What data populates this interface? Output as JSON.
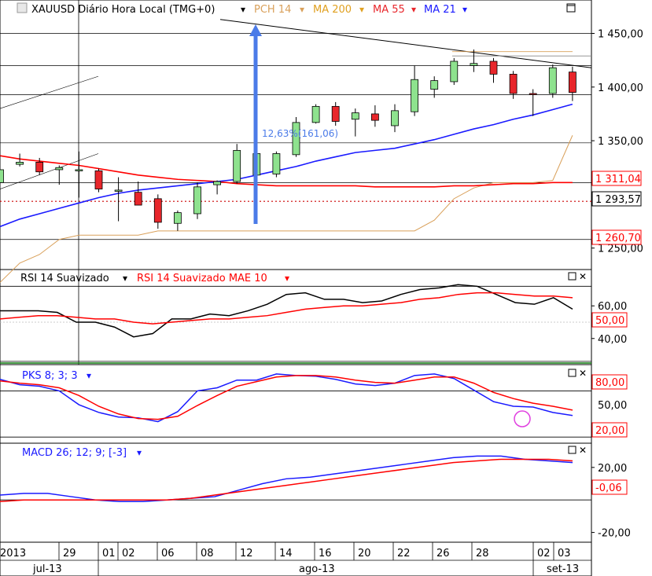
{
  "colors": {
    "bull": "#8ee28e",
    "bear": "#e8262b",
    "blue": "#1a1aff",
    "red": "#ff0000",
    "pch": "#d9a05a",
    "arrow": "#4b7be8",
    "price_box_border": "#ff0000",
    "price_box_fill": "#ffffff"
  },
  "header": {
    "symbol_label": "XAUUSD Diário Hora Local (TMG+0)",
    "legend": [
      {
        "label": "PCH 14",
        "color": "#d9a05a"
      },
      {
        "label": "MA 200",
        "color": "#e0a020"
      },
      {
        "label": "MA 55",
        "color": "#e8262b"
      },
      {
        "label": "MA 21",
        "color": "#1a1aff"
      }
    ]
  },
  "annotation": {
    "label": "12,63%(161,06)"
  },
  "price_boxes": [
    "1 311,04",
    "1 293,57",
    "1 260,70"
  ],
  "chart_data": [
    {
      "type": "candlestick",
      "title": "XAUUSD Diário Hora Local (TMG+0)",
      "ylim": [
        1230,
        1465
      ],
      "y_ticks": [
        "1 450,00",
        "1 400,00",
        "1 350,00",
        "1 250,00"
      ],
      "x_ticks": [
        "2013",
        "29",
        "01",
        "02",
        "06",
        "08",
        "12",
        "14",
        "16",
        "20",
        "22",
        "26",
        "28",
        "02",
        "03"
      ],
      "x_months": [
        "jul-13",
        "ago-13",
        "set-13"
      ],
      "candles": [
        {
          "o": 1311,
          "h": 1336,
          "l": 1309,
          "c": 1323
        },
        {
          "o": 1328,
          "h": 1338,
          "l": 1326,
          "c": 1330
        },
        {
          "o": 1330,
          "h": 1334,
          "l": 1318,
          "c": 1321
        },
        {
          "o": 1323,
          "h": 1327,
          "l": 1309,
          "c": 1325
        },
        {
          "o": 1322,
          "h": 1340,
          "l": 1297,
          "c": 1323
        },
        {
          "o": 1322,
          "h": 1324,
          "l": 1302,
          "c": 1305
        },
        {
          "o": 1304,
          "h": 1316,
          "l": 1275,
          "c": 1304
        },
        {
          "o": 1302,
          "h": 1312,
          "l": 1290,
          "c": 1290
        },
        {
          "o": 1296,
          "h": 1300,
          "l": 1268,
          "c": 1274
        },
        {
          "o": 1273,
          "h": 1285,
          "l": 1266,
          "c": 1283
        },
        {
          "o": 1282,
          "h": 1311,
          "l": 1277,
          "c": 1307
        },
        {
          "o": 1309,
          "h": 1313,
          "l": 1300,
          "c": 1312
        },
        {
          "o": 1312,
          "h": 1347,
          "l": 1310,
          "c": 1341
        },
        {
          "o": 1318,
          "h": 1346,
          "l": 1308,
          "c": 1338
        },
        {
          "o": 1319,
          "h": 1340,
          "l": 1316,
          "c": 1338
        },
        {
          "o": 1337,
          "h": 1372,
          "l": 1335,
          "c": 1367
        },
        {
          "o": 1367,
          "h": 1384,
          "l": 1366,
          "c": 1382
        },
        {
          "o": 1382,
          "h": 1386,
          "l": 1364,
          "c": 1368
        },
        {
          "o": 1370,
          "h": 1380,
          "l": 1354,
          "c": 1376
        },
        {
          "o": 1375,
          "h": 1383,
          "l": 1363,
          "c": 1369
        },
        {
          "o": 1364,
          "h": 1384,
          "l": 1358,
          "c": 1378
        },
        {
          "o": 1377,
          "h": 1420,
          "l": 1373,
          "c": 1407
        },
        {
          "o": 1398,
          "h": 1410,
          "l": 1390,
          "c": 1406
        },
        {
          "o": 1405,
          "h": 1427,
          "l": 1402,
          "c": 1424
        },
        {
          "o": 1420,
          "h": 1435,
          "l": 1414,
          "c": 1422
        },
        {
          "o": 1424,
          "h": 1427,
          "l": 1404,
          "c": 1412
        },
        {
          "o": 1412,
          "h": 1415,
          "l": 1389,
          "c": 1394
        },
        {
          "o": 1394,
          "h": 1398,
          "l": 1373,
          "c": 1393
        },
        {
          "o": 1394,
          "h": 1421,
          "l": 1390,
          "c": 1418
        },
        {
          "o": 1414,
          "h": 1419,
          "l": 1387,
          "c": 1395
        }
      ],
      "ma21": [
        1270,
        1277,
        1282,
        1287,
        1292,
        1297,
        1301,
        1304,
        1306,
        1308,
        1310,
        1312,
        1314,
        1318,
        1322,
        1326,
        1331,
        1335,
        1339,
        1341,
        1343,
        1347,
        1351,
        1356,
        1361,
        1365,
        1370,
        1374,
        1379,
        1384
      ],
      "ma55": [
        1336,
        1333,
        1331,
        1329,
        1327,
        1324,
        1321,
        1318,
        1316,
        1314,
        1313,
        1312,
        1310,
        1309,
        1308,
        1308,
        1308,
        1308,
        1308,
        1307,
        1307,
        1307,
        1307,
        1308,
        1308,
        1309,
        1310,
        1310,
        1311,
        1311
      ],
      "pch": [
        1218,
        1236,
        1244,
        1258,
        1262,
        1262,
        1262,
        1262,
        1266,
        1266,
        1266,
        1266,
        1266,
        1266,
        1266,
        1266,
        1266,
        1266,
        1266,
        1266,
        1266,
        1266,
        1276,
        1296,
        1306,
        1311,
        1311,
        1311,
        1313,
        1355
      ]
    },
    {
      "type": "line",
      "title": "RSI 14 Suavizado",
      "series": [
        {
          "name": "RSI 14 Suavizado",
          "color": "#000000",
          "values": [
            57,
            57,
            57,
            56,
            50,
            50,
            47,
            41,
            43,
            52,
            52,
            55,
            54,
            57,
            61,
            67,
            68,
            64,
            64,
            62,
            63,
            67,
            70,
            71,
            73,
            72,
            67,
            62,
            61,
            65,
            58
          ]
        },
        {
          "name": "RSI 14 Suavizado MAE 10",
          "color": "#ff0000",
          "values": [
            52,
            53,
            54,
            54,
            53,
            52,
            52,
            50,
            49,
            50,
            51,
            52,
            52,
            53,
            54,
            56,
            58,
            59,
            60,
            60,
            61,
            62,
            64,
            65,
            67,
            68,
            68,
            67,
            66,
            66,
            65
          ]
        }
      ],
      "ylim": [
        24,
        76
      ],
      "y_ticks": [
        "60,00",
        "40,00"
      ],
      "ref_lines": [
        72,
        50,
        26
      ]
    },
    {
      "type": "line",
      "title": "PKS 8; 3; 3",
      "series": [
        {
          "name": "PKS 8; 3; 3",
          "color": "#1a1aff",
          "values": [
            95,
            88,
            86,
            80,
            62,
            52,
            46,
            45,
            40,
            53,
            80,
            84,
            94,
            94,
            102,
            100,
            99,
            95,
            89,
            87,
            90,
            100,
            102,
            96,
            81,
            66,
            60,
            59,
            52,
            48
          ]
        },
        {
          "name": "PKS 8; 3; 3 slow",
          "color": "#ff0000",
          "values": [
            93,
            90,
            88,
            84,
            74,
            60,
            50,
            44,
            43,
            47,
            61,
            74,
            86,
            92,
            98,
            100,
            100,
            98,
            94,
            91,
            90,
            94,
            98,
            98,
            90,
            78,
            70,
            64,
            60,
            55
          ]
        }
      ],
      "ylim": [
        12,
        108
      ],
      "y_ticks": [
        "80,00",
        "50,00",
        "20,00"
      ],
      "ref_lines": [
        80,
        20
      ]
    },
    {
      "type": "line",
      "title": "MACD 26; 12; 9; [-3]",
      "series": [
        {
          "name": "MACD",
          "color": "#1a1aff",
          "values": [
            3,
            4,
            4,
            2,
            0,
            -1,
            -1,
            0,
            1,
            2,
            6,
            10,
            13,
            14,
            16,
            18,
            20,
            22,
            24,
            26,
            27,
            27,
            25,
            24,
            23
          ]
        },
        {
          "name": "Signal",
          "color": "#ff0000",
          "values": [
            -1,
            0,
            0,
            0,
            0,
            0,
            0,
            0,
            1,
            3,
            5,
            7,
            9,
            11,
            13,
            15,
            17,
            19,
            21,
            23,
            24,
            25,
            25,
            25,
            24
          ]
        }
      ],
      "ylim": [
        -26,
        32
      ],
      "y_ticks": [
        "20,00",
        "-20,00"
      ],
      "signal_label": "-0,06",
      "ref_lines": [
        0
      ]
    }
  ],
  "panels": {
    "rsi": {
      "title": "RSI 14 Suavizado",
      "title2": "RSI 14 Suavizado MAE 10",
      "value_box": "50,00"
    },
    "pks": {
      "title": "PKS 8; 3; 3",
      "value_boxes": [
        "80,00",
        "50,00",
        "20,00"
      ]
    },
    "macd": {
      "title": "MACD 26; 12; 9; [-3]"
    }
  }
}
